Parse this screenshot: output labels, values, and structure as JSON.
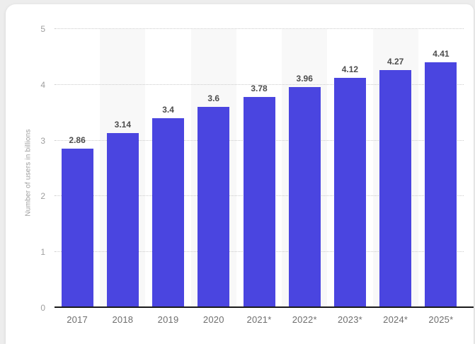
{
  "page": {
    "background_color": "#ededed",
    "card_color": "#ffffff"
  },
  "chart_data": {
    "type": "bar",
    "categories": [
      "2017",
      "2018",
      "2019",
      "2020",
      "2021*",
      "2022*",
      "2023*",
      "2024*",
      "2025*"
    ],
    "values": [
      2.86,
      3.14,
      3.4,
      3.6,
      3.78,
      3.96,
      4.12,
      4.27,
      4.41
    ],
    "value_labels": [
      "2.86",
      "3.14",
      "3.4",
      "3.6",
      "3.78",
      "3.96",
      "4.12",
      "4.27",
      "4.41"
    ],
    "xlabel": "",
    "ylabel": "Number of users in billions",
    "y_ticks": [
      0,
      1,
      2,
      3,
      4,
      5
    ],
    "ylim": [
      0,
      5
    ],
    "grid": "horizontal-dotted",
    "striped_categories": [
      "2018",
      "2020",
      "2022*",
      "2024*"
    ],
    "colors": {
      "bar": "#4a45e0",
      "value_label": "#4d4d4d",
      "x_tick": "#6e6e6e",
      "y_tick": "#9e9e9e",
      "axis_label": "#9c9c9c",
      "gridline": "#cbcbcb",
      "baseline": "#1a1a1a",
      "stripe": "#f8f8f8"
    }
  }
}
